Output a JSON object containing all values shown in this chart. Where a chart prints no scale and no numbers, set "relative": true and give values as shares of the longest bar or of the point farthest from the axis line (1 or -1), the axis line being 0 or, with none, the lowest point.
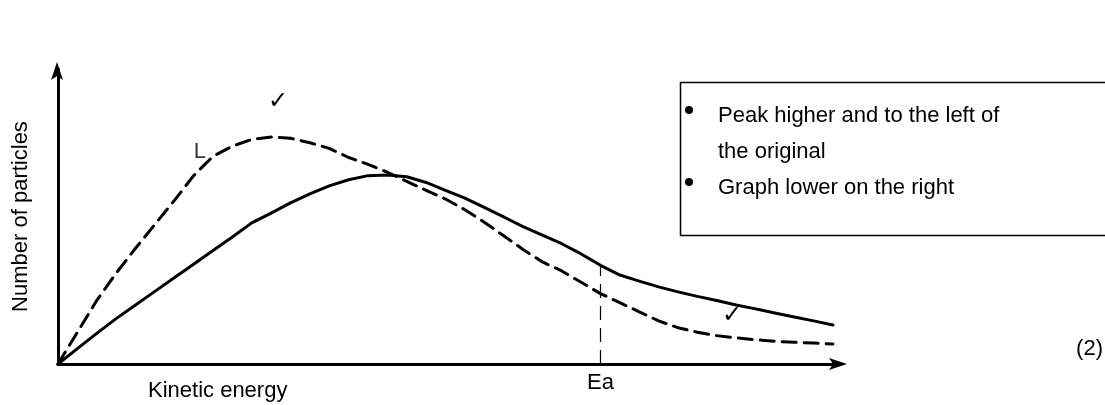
{
  "chart_data": {
    "type": "line",
    "relative": true,
    "xlabel": "Kinetic energy",
    "ylabel": "Number of particles",
    "categories": [
      null,
      null,
      null,
      null,
      null,
      null,
      null,
      null,
      null,
      null,
      null,
      null,
      null,
      null,
      null,
      null,
      null,
      null,
      null,
      null,
      null,
      null,
      null,
      null,
      null,
      null,
      null,
      null,
      null,
      null,
      null,
      null,
      null,
      null,
      null,
      null,
      null,
      null,
      null,
      null,
      null
    ],
    "grid": false,
    "legend": false,
    "marker": "none",
    "series": [
      {
        "color": "#000000",
        "line_style": "solid",
        "values": [
          0,
          0.068,
          0.135,
          0.2,
          0.26,
          0.32,
          0.38,
          0.44,
          0.5,
          0.56,
          0.622,
          0.665,
          0.71,
          0.75,
          0.785,
          0.812,
          0.83,
          0.833,
          0.825,
          0.8,
          0.765,
          0.731,
          0.69,
          0.648,
          0.605,
          0.568,
          0.53,
          0.485,
          0.435,
          0.392,
          0.365,
          0.34,
          0.318,
          0.298,
          0.28,
          0.26,
          0.243,
          0.225,
          0.207,
          0.19,
          0.172
        ]
      },
      {
        "name": "L",
        "color": "#000000",
        "line_style": "dashed",
        "values": [
          0,
          0.14,
          0.28,
          0.4,
          0.51,
          0.615,
          0.72,
          0.83,
          0.915,
          0.96,
          0.99,
          1,
          0.995,
          0.975,
          0.95,
          0.91,
          0.88,
          0.845,
          0.805,
          0.765,
          0.727,
          0.68,
          0.625,
          0.565,
          0.505,
          0.45,
          0.41,
          0.36,
          0.31,
          0.27,
          0.23,
          0.19,
          0.16,
          0.14,
          0.125,
          0.115,
          0.107,
          0.1,
          0.096,
          0.092,
          0.088
        ]
      }
    ],
    "annotations": [
      "✓",
      "✓",
      "Ea",
      "Peak higher and to the left of the original",
      "Graph lower on the right",
      "(2)"
    ]
  }
}
